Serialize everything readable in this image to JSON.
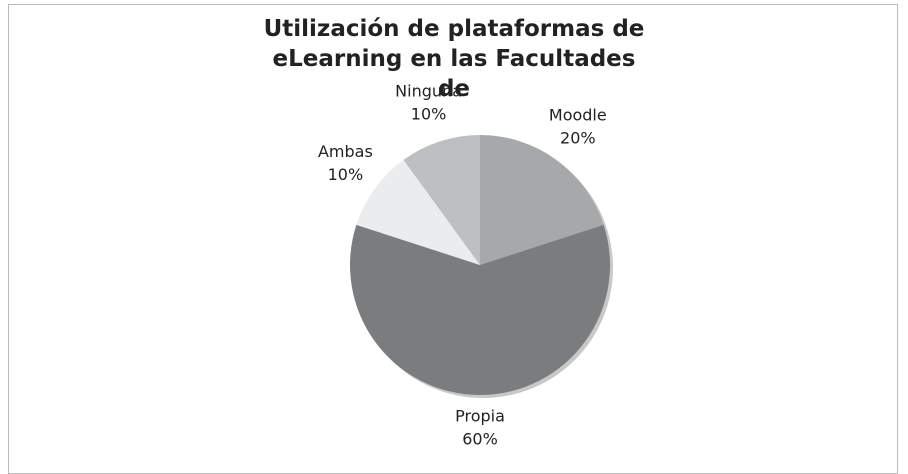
{
  "chart_data": {
    "type": "pie",
    "title": "Utilización de plataformas de eLearning en las Facultades de",
    "categories": [
      "Moodle",
      "Propia",
      "Ambas",
      "Ninguna"
    ],
    "values": [
      20,
      60,
      10,
      10
    ],
    "value_labels": [
      "20%",
      "60%",
      "10%",
      "10%"
    ],
    "colors": [
      "#a6a8aa",
      "#7b7c7e",
      "#ebecee",
      "#bebfc1"
    ]
  }
}
